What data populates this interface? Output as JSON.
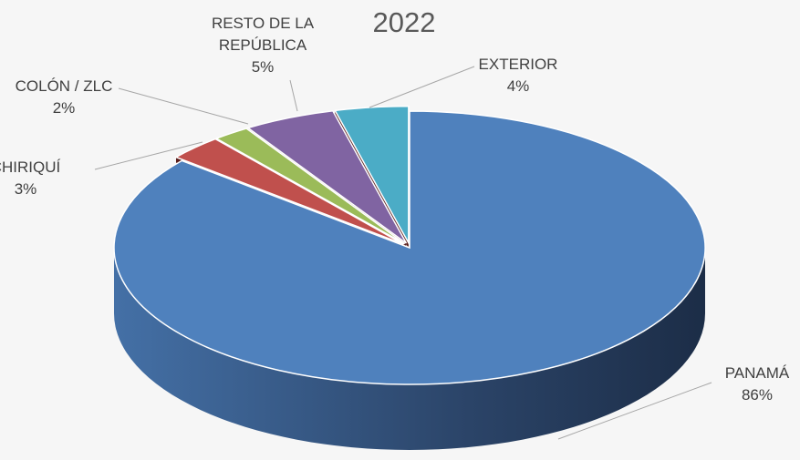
{
  "chart_data": {
    "type": "pie3d",
    "title": "2022",
    "categories": [
      "PANAMÁ",
      "CHIRIQUÍ",
      "COLÓN / ZLC",
      "RESTO DE LA REPÚBLICA",
      "EXTERIOR"
    ],
    "values": [
      86,
      3,
      2,
      5,
      4
    ],
    "value_labels": [
      "86%",
      "3%",
      "2%",
      "5%",
      "4%"
    ],
    "colors": [
      "#4f81bd",
      "#c0504d",
      "#9bbb59",
      "#8064a2",
      "#4bacc6"
    ]
  }
}
